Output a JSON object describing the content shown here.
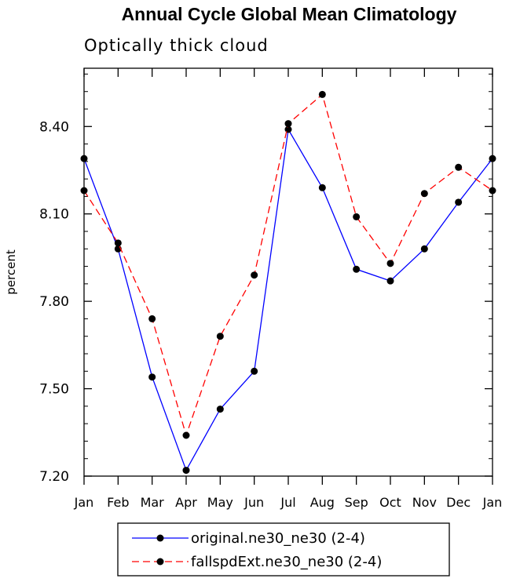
{
  "chart_data": {
    "type": "line",
    "title": "Annual Cycle Global Mean Climatology",
    "subtitle": "Optically thick cloud",
    "xlabel": "",
    "ylabel": "percent",
    "categories": [
      "Jan",
      "Feb",
      "Mar",
      "Apr",
      "May",
      "Jun",
      "Jul",
      "Aug",
      "Sep",
      "Oct",
      "Nov",
      "Dec",
      "Jan"
    ],
    "yticks": [
      "7.20",
      "7.50",
      "7.80",
      "8.10",
      "8.40"
    ],
    "ylim": [
      7.2,
      8.6
    ],
    "grid": false,
    "legend_position": "bottom",
    "series": [
      {
        "name": "original.ne30_ne30 (2-4)",
        "color": "#0000ff",
        "line_style": "solid",
        "values": [
          8.29,
          7.98,
          7.54,
          7.22,
          7.43,
          7.56,
          8.39,
          8.19,
          7.91,
          7.87,
          7.98,
          8.14,
          8.29
        ]
      },
      {
        "name": "fallspdExt.ne30_ne30 (2-4)",
        "color": "#ff0000",
        "line_style": "dashed",
        "values": [
          8.18,
          8.0,
          7.74,
          7.34,
          7.68,
          7.89,
          8.41,
          8.51,
          8.09,
          7.93,
          8.17,
          8.26,
          8.18
        ]
      }
    ]
  }
}
